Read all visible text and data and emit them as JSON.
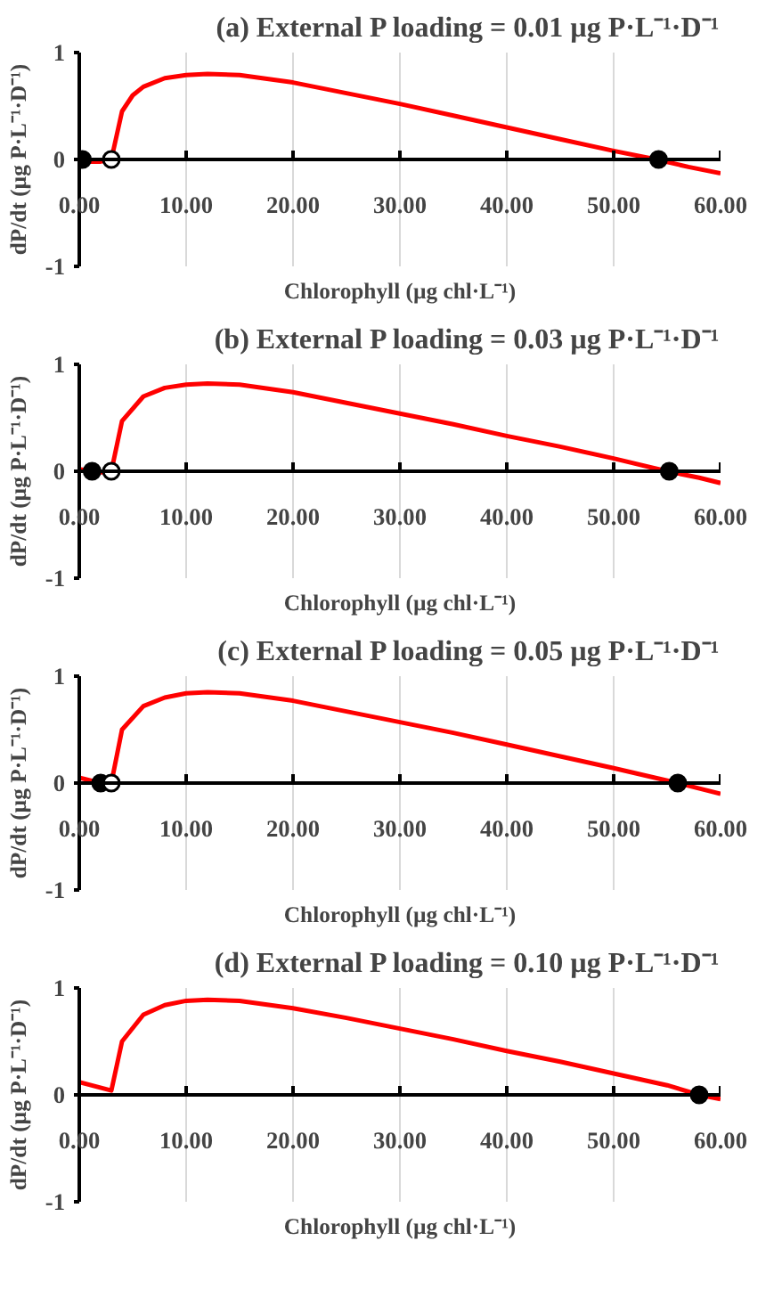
{
  "chart_data": [
    {
      "type": "line",
      "title": "(a) External P loading = 0.01 µg P·L⁻¹·D⁻¹",
      "xlabel": "Chlorophyll (µg chl·L⁻¹)",
      "ylabel": "dP/dt (µg P·L⁻¹·D⁻¹)",
      "xlim": [
        0,
        60
      ],
      "ylim": [
        -1,
        1
      ],
      "xticks": [
        {
          "value": 0,
          "label": "0.00"
        },
        {
          "value": 10,
          "label": "10.00"
        },
        {
          "value": 20,
          "label": "20.00"
        },
        {
          "value": 30,
          "label": "30.00"
        },
        {
          "value": 40,
          "label": "40.00"
        },
        {
          "value": 50,
          "label": "50.00"
        },
        {
          "value": 60,
          "label": "60.00"
        }
      ],
      "yticks": [
        -1,
        0,
        1
      ],
      "grid": "x",
      "series": [
        {
          "type": "line",
          "color": "#ff0000",
          "x": [
            0,
            1,
            2,
            3,
            4,
            5,
            6,
            8,
            10,
            12,
            15,
            20,
            25,
            30,
            35,
            40,
            45,
            50,
            54,
            57,
            60
          ],
          "values": [
            0,
            -0.02,
            -0.02,
            0,
            0.45,
            0.6,
            0.68,
            0.76,
            0.79,
            0.8,
            0.79,
            0.72,
            0.62,
            0.52,
            0.41,
            0.3,
            0.19,
            0.08,
            0,
            -0.07,
            -0.13
          ]
        },
        {
          "type": "scatter",
          "color": "#000000",
          "marker": "circle",
          "x": [
            0.3,
            54.2
          ],
          "values": [
            0,
            0
          ]
        },
        {
          "type": "scatter",
          "color": "#ffffff",
          "marker": "circle",
          "x": [
            3
          ],
          "values": [
            0
          ]
        }
      ]
    },
    {
      "type": "line",
      "title": "(b) External P loading = 0.03 µg P·L⁻¹·D⁻¹",
      "xlabel": "Chlorophyll (µg chl·L⁻¹)",
      "ylabel": "dP/dt (µg P·L⁻¹·D⁻¹)",
      "xlim": [
        0,
        60
      ],
      "ylim": [
        -1,
        1
      ],
      "xticks": [
        {
          "value": 0,
          "label": "0.00"
        },
        {
          "value": 10,
          "label": "10.00"
        },
        {
          "value": 20,
          "label": "20.00"
        },
        {
          "value": 30,
          "label": "30.00"
        },
        {
          "value": 40,
          "label": "40.00"
        },
        {
          "value": 50,
          "label": "50.00"
        },
        {
          "value": 60,
          "label": "60.00"
        }
      ],
      "yticks": [
        -1,
        0,
        1
      ],
      "grid": "x",
      "series": [
        {
          "type": "line",
          "color": "#ff0000",
          "x": [
            0,
            1.2,
            2,
            3,
            4,
            6,
            8,
            10,
            12,
            15,
            20,
            25,
            30,
            35,
            40,
            45,
            50,
            55,
            58,
            60
          ],
          "values": [
            0.02,
            0,
            -0.01,
            0,
            0.47,
            0.7,
            0.78,
            0.81,
            0.82,
            0.81,
            0.74,
            0.64,
            0.54,
            0.44,
            0.33,
            0.23,
            0.12,
            0,
            -0.06,
            -0.11
          ]
        },
        {
          "type": "scatter",
          "color": "#000000",
          "marker": "circle",
          "x": [
            1.2,
            55.2
          ],
          "values": [
            0,
            0
          ]
        },
        {
          "type": "scatter",
          "color": "#ffffff",
          "marker": "circle",
          "x": [
            3
          ],
          "values": [
            0
          ]
        }
      ]
    },
    {
      "type": "line",
      "title": "(c) External P loading = 0.05 µg P·L⁻¹·D⁻¹",
      "xlabel": "Chlorophyll (µg chl·L⁻¹)",
      "ylabel": "dP/dt (µg P·L⁻¹·D⁻¹)",
      "xlim": [
        0,
        60
      ],
      "ylim": [
        -1,
        1
      ],
      "xticks": [
        {
          "value": 0,
          "label": "0.00"
        },
        {
          "value": 10,
          "label": "10.00"
        },
        {
          "value": 20,
          "label": "20.00"
        },
        {
          "value": 30,
          "label": "30.00"
        },
        {
          "value": 40,
          "label": "40.00"
        },
        {
          "value": 50,
          "label": "50.00"
        },
        {
          "value": 60,
          "label": "60.00"
        }
      ],
      "yticks": [
        -1,
        0,
        1
      ],
      "grid": "x",
      "series": [
        {
          "type": "line",
          "color": "#ff0000",
          "x": [
            0,
            2,
            3,
            4,
            6,
            8,
            10,
            12,
            15,
            20,
            25,
            30,
            35,
            40,
            45,
            50,
            56,
            60
          ],
          "values": [
            0.05,
            0,
            0,
            0.5,
            0.72,
            0.8,
            0.84,
            0.85,
            0.84,
            0.77,
            0.67,
            0.57,
            0.47,
            0.36,
            0.25,
            0.14,
            0,
            -0.1
          ]
        },
        {
          "type": "scatter",
          "color": "#000000",
          "marker": "circle",
          "x": [
            2,
            56
          ],
          "values": [
            0,
            0
          ]
        },
        {
          "type": "scatter",
          "color": "#ffffff",
          "marker": "circle",
          "x": [
            3
          ],
          "values": [
            0
          ]
        }
      ]
    },
    {
      "type": "line",
      "title": "(d) External P loading = 0.10 µg P·L⁻¹·D⁻¹",
      "xlabel": "Chlorophyll (µg chl·L⁻¹)",
      "ylabel": "dP/dt (µg P·L⁻¹·D⁻¹)",
      "xlim": [
        0,
        60
      ],
      "ylim": [
        -1,
        1
      ],
      "xticks": [
        {
          "value": 0,
          "label": "0.00"
        },
        {
          "value": 10,
          "label": "10.00"
        },
        {
          "value": 20,
          "label": "20.00"
        },
        {
          "value": 30,
          "label": "30.00"
        },
        {
          "value": 40,
          "label": "40.00"
        },
        {
          "value": 50,
          "label": "50.00"
        },
        {
          "value": 60,
          "label": "60.00"
        }
      ],
      "yticks": [
        -1,
        0,
        1
      ],
      "grid": "x",
      "series": [
        {
          "type": "line",
          "color": "#ff0000",
          "x": [
            0,
            3,
            4,
            6,
            8,
            10,
            12,
            15,
            20,
            25,
            30,
            35,
            40,
            45,
            50,
            55,
            58,
            60
          ],
          "values": [
            0.12,
            0.04,
            0.5,
            0.75,
            0.84,
            0.88,
            0.89,
            0.88,
            0.81,
            0.72,
            0.62,
            0.52,
            0.41,
            0.31,
            0.2,
            0.09,
            0,
            -0.04
          ]
        },
        {
          "type": "scatter",
          "color": "#000000",
          "marker": "circle",
          "x": [
            58
          ],
          "values": [
            0
          ]
        }
      ]
    }
  ]
}
